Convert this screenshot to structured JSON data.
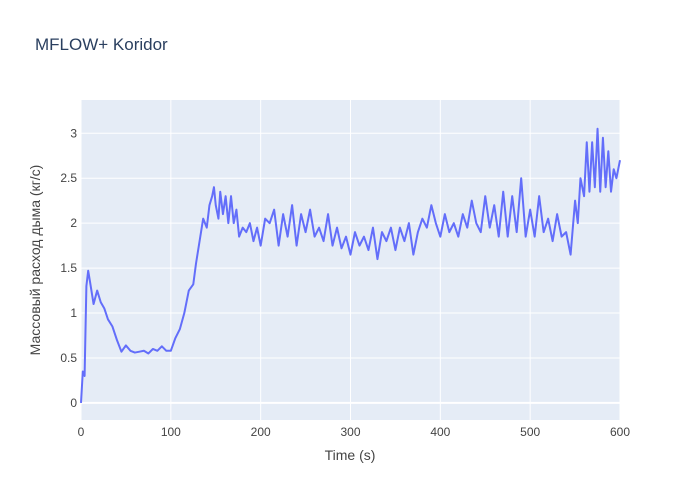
{
  "chart_data": {
    "type": "line",
    "title": "MFLOW+ Koridor",
    "x_label": "Time (s)",
    "y_label": "Массовый расход дыма (кг/с)",
    "xlim": [
      0,
      600
    ],
    "ylim": [
      -0.19,
      3.37
    ],
    "xticks": [
      0,
      100,
      200,
      300,
      400,
      500,
      600
    ],
    "yticks": [
      0,
      0.5,
      1,
      1.5,
      2,
      2.5,
      3
    ],
    "grid": true,
    "series": [
      {
        "color": "#636efa",
        "x": [
          0,
          2,
          4,
          6,
          8,
          10,
          14,
          18,
          22,
          26,
          30,
          35,
          40,
          45,
          50,
          55,
          60,
          65,
          70,
          75,
          80,
          85,
          90,
          95,
          100,
          105,
          110,
          115,
          120,
          125,
          128,
          132,
          136,
          140,
          143,
          146,
          148,
          150,
          153,
          155,
          158,
          161,
          164,
          167,
          170,
          173,
          176,
          180,
          184,
          188,
          192,
          196,
          200,
          205,
          210,
          215,
          220,
          225,
          230,
          235,
          240,
          245,
          250,
          255,
          260,
          265,
          270,
          275,
          280,
          285,
          290,
          295,
          300,
          305,
          310,
          315,
          320,
          325,
          330,
          335,
          340,
          345,
          350,
          355,
          360,
          365,
          370,
          375,
          380,
          385,
          390,
          395,
          400,
          405,
          410,
          415,
          420,
          425,
          430,
          435,
          440,
          445,
          450,
          455,
          460,
          465,
          470,
          475,
          480,
          485,
          490,
          495,
          500,
          505,
          510,
          515,
          520,
          525,
          530,
          535,
          540,
          545,
          550,
          553,
          556,
          560,
          563,
          566,
          569,
          572,
          575,
          578,
          581,
          584,
          587,
          590,
          593,
          596,
          600
        ],
        "values": [
          0,
          0.35,
          0.3,
          1.3,
          1.47,
          1.35,
          1.1,
          1.25,
          1.12,
          1.05,
          0.93,
          0.85,
          0.7,
          0.57,
          0.64,
          0.58,
          0.56,
          0.57,
          0.58,
          0.55,
          0.6,
          0.58,
          0.63,
          0.58,
          0.58,
          0.72,
          0.82,
          1.0,
          1.25,
          1.32,
          1.55,
          1.8,
          2.05,
          1.95,
          2.2,
          2.3,
          2.4,
          2.2,
          2.05,
          2.35,
          2.1,
          2.3,
          2.0,
          2.3,
          2.0,
          2.15,
          1.85,
          1.95,
          1.9,
          2.0,
          1.8,
          1.95,
          1.75,
          2.05,
          2.0,
          2.15,
          1.75,
          2.1,
          1.85,
          2.2,
          1.75,
          2.1,
          1.9,
          2.15,
          1.85,
          1.95,
          1.8,
          2.1,
          1.75,
          1.95,
          1.72,
          1.85,
          1.65,
          1.9,
          1.75,
          1.85,
          1.7,
          1.95,
          1.6,
          1.9,
          1.8,
          1.95,
          1.7,
          1.95,
          1.8,
          2.0,
          1.65,
          1.9,
          2.05,
          1.95,
          2.2,
          2.0,
          1.85,
          2.1,
          1.9,
          2.0,
          1.85,
          2.1,
          1.95,
          2.25,
          2.0,
          1.9,
          2.3,
          1.95,
          2.2,
          1.85,
          2.35,
          1.85,
          2.3,
          1.9,
          2.5,
          1.85,
          2.15,
          1.85,
          2.3,
          1.9,
          2.05,
          1.8,
          2.1,
          1.85,
          1.9,
          1.65,
          2.25,
          2.0,
          2.5,
          2.3,
          2.9,
          2.35,
          2.9,
          2.4,
          3.05,
          2.35,
          2.95,
          2.4,
          2.8,
          2.35,
          2.6,
          2.5,
          2.7
        ]
      }
    ]
  }
}
